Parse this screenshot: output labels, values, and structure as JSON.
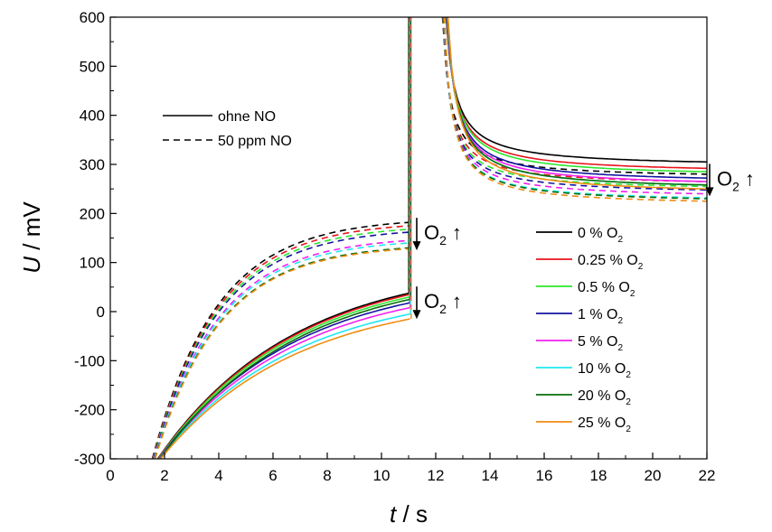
{
  "chart_data": {
    "type": "line",
    "xlabel": {
      "var": "t",
      "unit": " / s"
    },
    "ylabel": {
      "var": "U",
      "unit": " / mV"
    },
    "xlim": [
      0,
      22
    ],
    "ylim": [
      -300,
      600
    ],
    "x_ticks": [
      "0",
      "2",
      "4",
      "6",
      "8",
      "10",
      "12",
      "14",
      "16",
      "18",
      "20",
      "22"
    ],
    "y_ticks": [
      "-300",
      "-200",
      "-100",
      "0",
      "100",
      "200",
      "300",
      "400",
      "500",
      "600"
    ],
    "grid": false,
    "style_legend": [
      {
        "label": "ohne NO",
        "dash": "solid"
      },
      {
        "label": "50 ppm NO",
        "dash": "dashed"
      }
    ],
    "series_legend": [
      {
        "label": "0 % O",
        "sub": "2",
        "color": "#000000"
      },
      {
        "label": "0.25 % O",
        "sub": "2",
        "color": "#e8141c"
      },
      {
        "label": "0.5 % O",
        "sub": "2",
        "color": "#2ce62c"
      },
      {
        "label": "1 % O",
        "sub": "2",
        "color": "#1414a0"
      },
      {
        "label": "5 % O",
        "sub": "2",
        "color": "#f020f0"
      },
      {
        "label": "10 % O",
        "sub": "2",
        "color": "#20e8f0"
      },
      {
        "label": "20 % O",
        "sub": "2",
        "color": "#0a6e0a"
      },
      {
        "label": "25 % O",
        "sub": "2",
        "color": "#f08c14"
      }
    ],
    "annotations": [
      {
        "text": "O",
        "sub": "2",
        "arrow_text": "↑",
        "x": 11.3,
        "y": 158
      },
      {
        "text": "O",
        "sub": "2",
        "arrow_text": "↑",
        "x": 11.3,
        "y": 18
      },
      {
        "text": "O",
        "sub": "2",
        "arrow_text": "↑",
        "x": 22.1,
        "y": 268
      }
    ],
    "pulse": {
      "t_start": 11.05,
      "t_end": 12.3
    },
    "phase1": {
      "x_start": 1.5,
      "x_end": 11.05,
      "solid_end_values": [
        38,
        35,
        30,
        18,
        8,
        -5,
        25,
        -15
      ],
      "dashed_end_values": [
        182,
        175,
        168,
        162,
        145,
        140,
        130,
        128
      ]
    },
    "phase2": {
      "x_start": 12.3,
      "x_end": 22,
      "solid_end_values": [
        305,
        292,
        285,
        272,
        265,
        258,
        258,
        250
      ],
      "dashed_end_values": [
        280,
        265,
        255,
        248,
        240,
        232,
        230,
        225
      ]
    }
  }
}
